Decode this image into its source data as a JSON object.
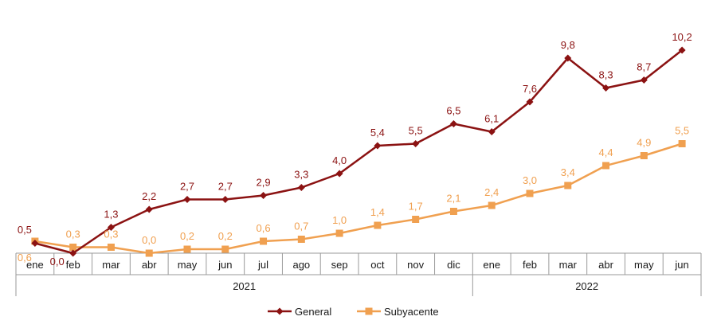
{
  "chart_data": {
    "type": "line",
    "categories": [
      "ene",
      "feb",
      "mar",
      "abr",
      "may",
      "jun",
      "jul",
      "ago",
      "sep",
      "oct",
      "nov",
      "dic",
      "ene",
      "feb",
      "mar",
      "abr",
      "may",
      "jun"
    ],
    "year_groups": [
      {
        "label": "2021",
        "count": 12
      },
      {
        "label": "2022",
        "count": 6
      }
    ],
    "series": [
      {
        "name": "General",
        "color": "#8b1212",
        "marker": "diamond",
        "values": [
          0.5,
          0.0,
          1.3,
          2.2,
          2.7,
          2.7,
          2.9,
          3.3,
          4.0,
          5.4,
          5.5,
          6.5,
          6.1,
          7.6,
          9.8,
          8.3,
          8.7,
          10.2
        ],
        "labels": [
          "0,5",
          "0,0",
          "1,3",
          "2,2",
          "2,7",
          "2,7",
          "2,9",
          "3,3",
          "4,0",
          "5,4",
          "5,5",
          "6,5",
          "6,1",
          "7,6",
          "9,8",
          "8,3",
          "8,7",
          "10,2"
        ]
      },
      {
        "name": "Subyacente",
        "color": "#f0a050",
        "marker": "square",
        "values": [
          0.6,
          0.3,
          0.3,
          0.0,
          0.2,
          0.2,
          0.6,
          0.7,
          1.0,
          1.4,
          1.7,
          2.1,
          2.4,
          3.0,
          3.4,
          4.4,
          4.9,
          5.5
        ],
        "labels": [
          "0,6",
          "0,3",
          "0,3",
          "0,0",
          "0,2",
          "0,2",
          "0,6",
          "0,7",
          "1,0",
          "1,4",
          "1,7",
          "2,1",
          "2,4",
          "3,0",
          "3,4",
          "4,4",
          "4,9",
          "5,5"
        ]
      }
    ],
    "ylim": [
      0,
      11
    ],
    "grid": false,
    "legend": "bottom"
  }
}
